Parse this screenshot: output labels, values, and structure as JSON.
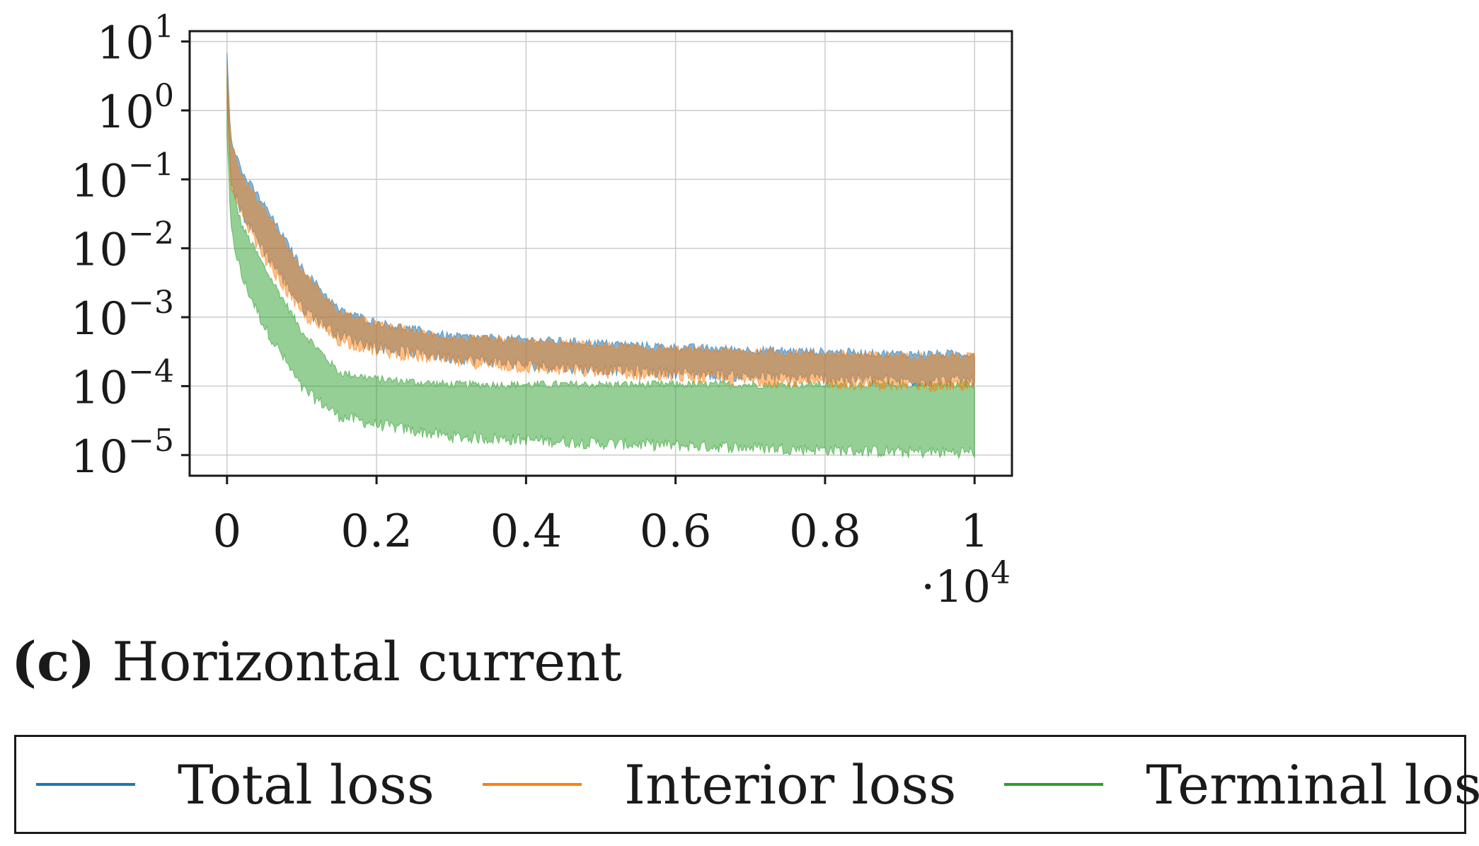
{
  "chart_data": {
    "type": "line",
    "title": "",
    "xlabel": "",
    "ylabel": "",
    "x_scale_multiplier": "·10^4",
    "x_offset_label": "·10",
    "x_offset_exp": "4",
    "xlim": [
      -0.05,
      1.05
    ],
    "ylim_log10": [
      -5.3,
      1.15
    ],
    "y_scale": "log",
    "grid": true,
    "x_ticks": [
      {
        "value": 0,
        "label": "0"
      },
      {
        "value": 0.2,
        "label": "0.2"
      },
      {
        "value": 0.4,
        "label": "0.4"
      },
      {
        "value": 0.6,
        "label": "0.6"
      },
      {
        "value": 0.8,
        "label": "0.8"
      },
      {
        "value": 1,
        "label": "1"
      }
    ],
    "y_ticks": [
      {
        "exp": 1,
        "base": "10",
        "sup": "1"
      },
      {
        "exp": 0,
        "base": "10",
        "sup": "0"
      },
      {
        "exp": -1,
        "base": "10",
        "sup": "−1"
      },
      {
        "exp": -2,
        "base": "10",
        "sup": "−2"
      },
      {
        "exp": -3,
        "base": "10",
        "sup": "−3"
      },
      {
        "exp": -4,
        "base": "10",
        "sup": "−4"
      },
      {
        "exp": -5,
        "base": "10",
        "sup": "−5"
      }
    ],
    "series": [
      {
        "name": "Total loss",
        "color": "#1f77b4",
        "x": [
          0,
          0.005,
          0.02,
          0.05,
          0.1,
          0.15,
          0.2,
          0.3,
          0.4,
          0.5,
          0.6,
          0.7,
          0.8,
          0.9,
          1.0
        ],
        "upper": [
          7,
          0.4,
          0.12,
          0.04,
          0.005,
          0.0012,
          0.0008,
          0.0005,
          0.00045,
          0.0004,
          0.00035,
          0.00032,
          0.0003,
          0.00028,
          0.00028
        ],
        "lower": [
          2,
          0.1,
          0.035,
          0.01,
          0.0015,
          0.0006,
          0.0004,
          0.00028,
          0.00022,
          0.00019,
          0.00017,
          0.00015,
          0.00014,
          0.00013,
          0.00013
        ]
      },
      {
        "name": "Interior loss",
        "color": "#ff7f0e",
        "x": [
          0,
          0.005,
          0.02,
          0.05,
          0.1,
          0.15,
          0.2,
          0.3,
          0.4,
          0.5,
          0.6,
          0.7,
          0.8,
          0.9,
          1.0
        ],
        "upper": [
          4,
          0.35,
          0.1,
          0.035,
          0.0045,
          0.0011,
          0.00075,
          0.00047,
          0.00042,
          0.00037,
          0.00032,
          0.0003,
          0.00028,
          0.00026,
          0.00026
        ],
        "lower": [
          1.5,
          0.08,
          0.03,
          0.008,
          0.0012,
          0.0005,
          0.00035,
          0.00025,
          0.0002,
          0.00017,
          0.00015,
          0.00013,
          0.00012,
          0.00011,
          0.00011
        ]
      },
      {
        "name": "Terminal loss",
        "color": "#2ca02c",
        "x": [
          0,
          0.005,
          0.02,
          0.05,
          0.1,
          0.15,
          0.2,
          0.3,
          0.4,
          0.5,
          0.6,
          0.7,
          0.8,
          0.9,
          1.0
        ],
        "upper": [
          3,
          0.08,
          0.02,
          0.005,
          0.0006,
          0.00015,
          0.00012,
          0.0001,
          0.0001,
          0.0001,
          0.0001,
          0.0001,
          0.0001,
          0.0001,
          0.0001
        ],
        "lower": [
          0.5,
          0.02,
          0.004,
          0.0008,
          0.0001,
          4e-05,
          3e-05,
          2e-05,
          1.8e-05,
          1.6e-05,
          1.5e-05,
          1.4e-05,
          1.3e-05,
          1.2e-05,
          1.2e-05
        ]
      }
    ],
    "legend": [
      "Total loss",
      "Interior loss",
      "Terminal loss"
    ],
    "legend_position": "bottom"
  },
  "caption": {
    "letter": "(c)",
    "text": "Horizontal current"
  },
  "legend_labels": {
    "total": "Total loss",
    "interior": "Interior loss",
    "terminal": "Terminal loss"
  },
  "colors": {
    "total": "#1f77b4",
    "interior": "#ff7f0e",
    "terminal": "#2ca02c",
    "grid": "#cccccc",
    "axis": "#1a1a1a"
  }
}
